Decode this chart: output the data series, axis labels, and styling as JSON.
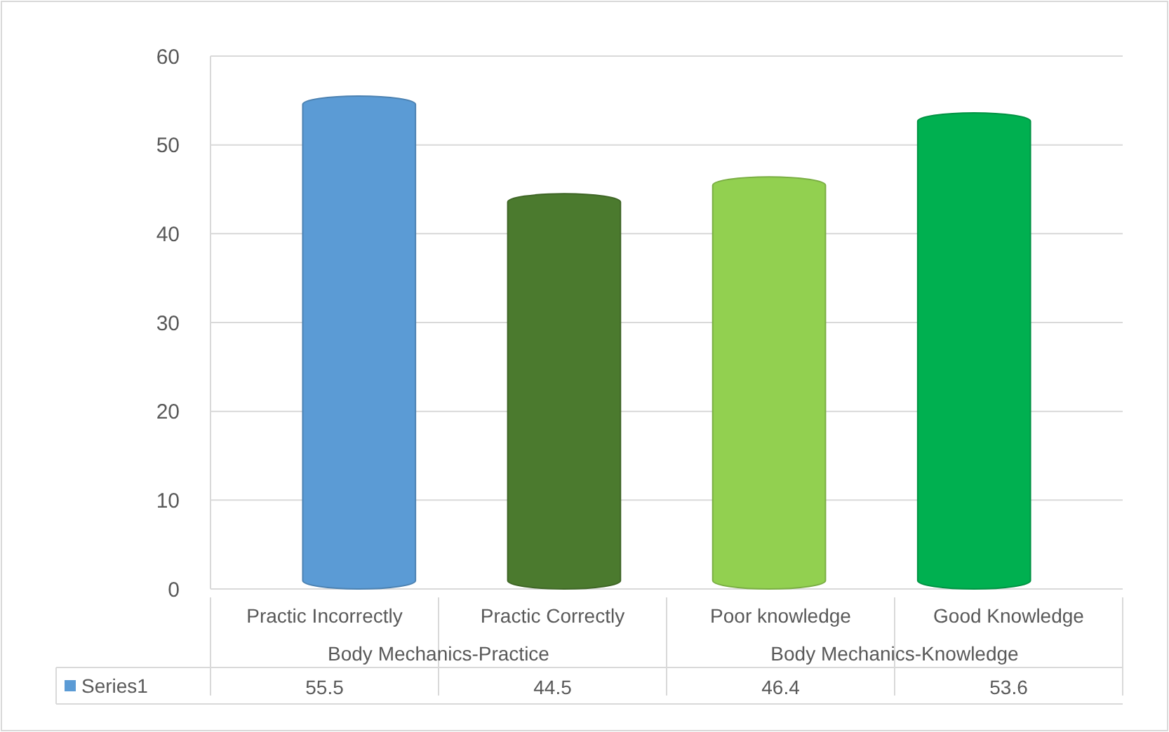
{
  "chart_data": {
    "type": "bar",
    "categories": [
      "Practic Incorrectly",
      "Practic Correctly",
      "Poor knowledge",
      "Good Knowledge"
    ],
    "series": [
      {
        "name": "Series1",
        "color": "#5b9bd5",
        "colors": [
          "#5b9bd5",
          "#4b7a2e",
          "#92d050",
          "#00b050"
        ],
        "values": [
          55.5,
          44.5,
          46.4,
          53.6
        ]
      }
    ],
    "ylim": [
      0,
      60
    ],
    "yticks": [
      0,
      10,
      20,
      30,
      40,
      50,
      60
    ],
    "grid": "y",
    "legend": "bottom",
    "data_labels": true,
    "annotations": [
      "Body Mechanics-Practice",
      "Body Mechanics-Knowledge"
    ]
  }
}
